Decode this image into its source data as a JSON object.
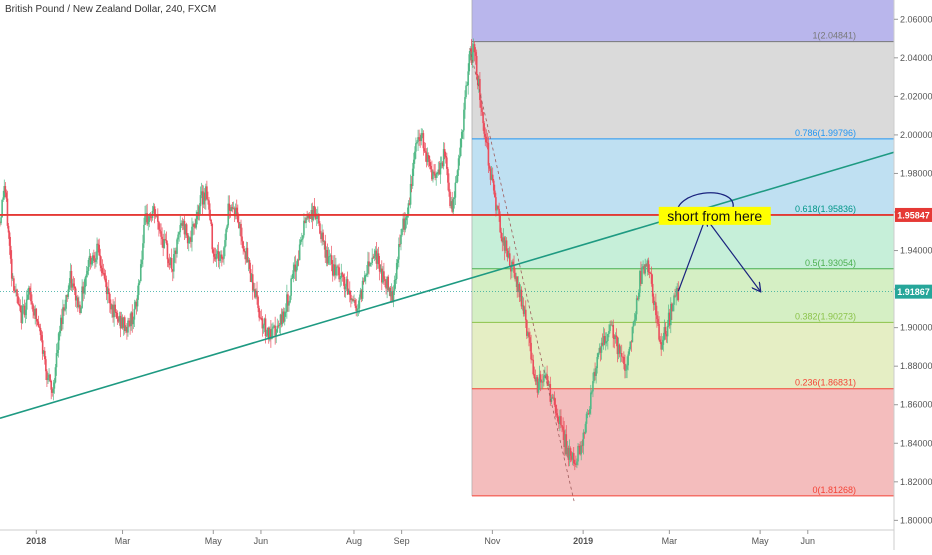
{
  "header": {
    "title": "British Pound / New Zealand Dollar, 240, FXCM"
  },
  "chart_data": {
    "type": "candlestick",
    "symbol": "GBPNZD",
    "timeframe": "240",
    "ylim": [
      1.795,
      2.07
    ],
    "y_ticks": [
      "1.80000",
      "1.82000",
      "1.84000",
      "1.86000",
      "1.88000",
      "1.90000",
      "1.92000",
      "1.94000",
      "1.96000",
      "1.98000",
      "2.00000",
      "2.02000",
      "2.04000",
      "2.06000"
    ],
    "x_ticks": [
      {
        "label": "2018",
        "t": 0.8
      },
      {
        "label": "Mar",
        "t": 2.7
      },
      {
        "label": "May",
        "t": 4.7
      },
      {
        "label": "Jun",
        "t": 5.75
      },
      {
        "label": "Aug",
        "t": 7.8
      },
      {
        "label": "Sep",
        "t": 8.85
      },
      {
        "label": "Nov",
        "t": 10.85
      },
      {
        "label": "2019",
        "t": 12.85
      },
      {
        "label": "Mar",
        "t": 14.75
      },
      {
        "label": "May",
        "t": 16.75
      },
      {
        "label": "Jun",
        "t": 17.8
      }
    ],
    "price_path": [
      [
        0.0,
        1.955
      ],
      [
        0.1,
        1.975
      ],
      [
        0.25,
        1.93
      ],
      [
        0.45,
        1.905
      ],
      [
        0.65,
        1.918
      ],
      [
        0.85,
        1.9
      ],
      [
        1.05,
        1.875
      ],
      [
        1.15,
        1.865
      ],
      [
        1.35,
        1.905
      ],
      [
        1.55,
        1.925
      ],
      [
        1.75,
        1.91
      ],
      [
        1.95,
        1.935
      ],
      [
        2.15,
        1.94
      ],
      [
        2.35,
        1.92
      ],
      [
        2.55,
        1.905
      ],
      [
        2.8,
        1.9
      ],
      [
        3.0,
        1.91
      ],
      [
        3.2,
        1.955
      ],
      [
        3.4,
        1.96
      ],
      [
        3.6,
        1.945
      ],
      [
        3.8,
        1.93
      ],
      [
        4.0,
        1.955
      ],
      [
        4.2,
        1.945
      ],
      [
        4.4,
        1.965
      ],
      [
        4.55,
        1.972
      ],
      [
        4.7,
        1.94
      ],
      [
        4.9,
        1.935
      ],
      [
        5.05,
        1.965
      ],
      [
        5.2,
        1.96
      ],
      [
        5.4,
        1.94
      ],
      [
        5.55,
        1.925
      ],
      [
        5.75,
        1.905
      ],
      [
        5.95,
        1.895
      ],
      [
        6.15,
        1.9
      ],
      [
        6.35,
        1.915
      ],
      [
        6.55,
        1.935
      ],
      [
        6.75,
        1.958
      ],
      [
        6.95,
        1.96
      ],
      [
        7.15,
        1.94
      ],
      [
        7.35,
        1.93
      ],
      [
        7.55,
        1.925
      ],
      [
        7.75,
        1.915
      ],
      [
        7.9,
        1.91
      ],
      [
        8.05,
        1.93
      ],
      [
        8.25,
        1.94
      ],
      [
        8.45,
        1.925
      ],
      [
        8.65,
        1.918
      ],
      [
        8.85,
        1.95
      ],
      [
        9.0,
        1.96
      ],
      [
        9.15,
        1.995
      ],
      [
        9.3,
        2.0
      ],
      [
        9.45,
        1.985
      ],
      [
        9.6,
        1.975
      ],
      [
        9.8,
        1.99
      ],
      [
        9.95,
        1.96
      ],
      [
        10.15,
        1.995
      ],
      [
        10.35,
        2.04
      ],
      [
        10.45,
        2.045
      ],
      [
        10.55,
        2.025
      ],
      [
        10.75,
        1.99
      ],
      [
        10.95,
        1.96
      ],
      [
        11.15,
        1.94
      ],
      [
        11.35,
        1.925
      ],
      [
        11.55,
        1.91
      ],
      [
        11.7,
        1.885
      ],
      [
        11.85,
        1.87
      ],
      [
        12.0,
        1.875
      ],
      [
        12.2,
        1.86
      ],
      [
        12.4,
        1.845
      ],
      [
        12.55,
        1.833
      ],
      [
        12.65,
        1.83
      ],
      [
        12.8,
        1.838
      ],
      [
        12.95,
        1.855
      ],
      [
        13.1,
        1.878
      ],
      [
        13.3,
        1.892
      ],
      [
        13.5,
        1.9
      ],
      [
        13.65,
        1.885
      ],
      [
        13.8,
        1.88
      ],
      [
        13.95,
        1.9
      ],
      [
        14.1,
        1.925
      ],
      [
        14.25,
        1.935
      ],
      [
        14.4,
        1.915
      ],
      [
        14.55,
        1.89
      ],
      [
        14.7,
        1.9
      ],
      [
        14.85,
        1.915
      ],
      [
        14.95,
        1.918
      ]
    ],
    "horizontal_line": {
      "price": 1.95847,
      "label": "1.95847",
      "color": "#e53935"
    },
    "current_price_line": {
      "price": 1.91867,
      "label": "1.91867",
      "color": "#26a69a"
    },
    "trendline": {
      "from": [
        0.0,
        1.853
      ],
      "to": [
        19.7,
        1.991
      ],
      "color": "#1e9a82"
    },
    "fibonacci": {
      "t_start": 10.4,
      "t_end": 19.7,
      "low": 1.81268,
      "high": 2.04841,
      "levels": [
        {
          "ratio": 0,
          "price": 1.81268,
          "label": "0(1.81268)",
          "color": "#f44336"
        },
        {
          "ratio": 0.236,
          "price": 1.86831,
          "label": "0.236(1.86831)",
          "color": "#f44336"
        },
        {
          "ratio": 0.382,
          "price": 1.90273,
          "label": "0.382(1.90273)",
          "color": "#8bc34a"
        },
        {
          "ratio": 0.5,
          "price": 1.93054,
          "label": "0.5(1.93054)",
          "color": "#4caf50"
        },
        {
          "ratio": 0.618,
          "price": 1.95836,
          "label": "0.618(1.95836)",
          "color": "#009688"
        },
        {
          "ratio": 0.786,
          "price": 1.99796,
          "label": "0.786(1.99796)",
          "color": "#2196f3"
        },
        {
          "ratio": 1,
          "price": 2.04841,
          "label": "1(2.04841)",
          "color": "#787878"
        }
      ],
      "zone_colors": [
        "#f4bdbd",
        "#e5eec4",
        "#d5efc4",
        "#c6efd9",
        "#bfe0f2",
        "#dadada",
        "#b9b6ec"
      ]
    },
    "annotations": [
      {
        "text": "short from here",
        "t": 15.75,
        "price": 1.958,
        "background": "#ffff00"
      }
    ],
    "arrows": [
      {
        "from": [
          14.95,
          1.919
        ],
        "to": [
          15.55,
          1.957
        ]
      },
      {
        "from": [
          15.55,
          1.957
        ],
        "to": [
          16.75,
          1.919
        ]
      }
    ],
    "dashed_guide": {
      "from": [
        10.35,
        2.045
      ],
      "to": [
        12.65,
        1.81
      ]
    }
  }
}
